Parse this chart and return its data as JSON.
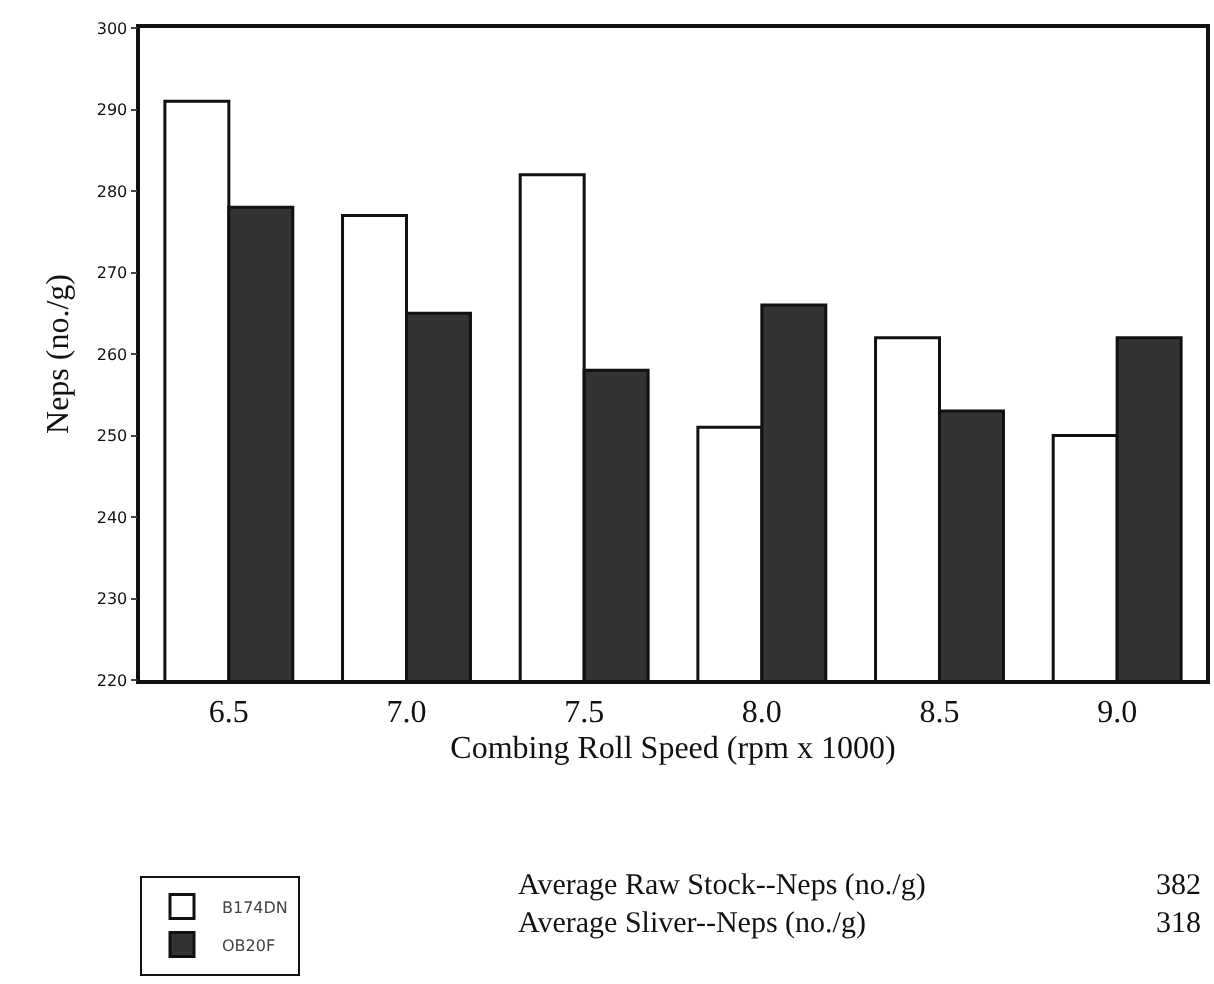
{
  "chart_data": {
    "type": "bar",
    "xlabel": "Combing Roll Speed (rpm x 1000)",
    "ylabel": "Neps (no./g)",
    "categories": [
      "6.5",
      "7.0",
      "7.5",
      "8.0",
      "8.5",
      "9.0"
    ],
    "series": [
      {
        "name": "B174DN",
        "color": "#ffffff",
        "values": [
          291,
          277,
          282,
          251,
          262,
          250
        ]
      },
      {
        "name": "OB20F",
        "color": "#333333",
        "values": [
          278,
          265,
          258,
          266,
          253,
          262
        ]
      }
    ],
    "ylim": [
      220,
      300
    ],
    "yticks": [
      220,
      230,
      240,
      250,
      260,
      270,
      280,
      290,
      300
    ],
    "grid": false,
    "legend": "bottom left",
    "annotations": [
      "Average Raw Stock--Neps (no./g)",
      "382",
      "Average Sliver--Neps (no./g)",
      "318"
    ]
  }
}
